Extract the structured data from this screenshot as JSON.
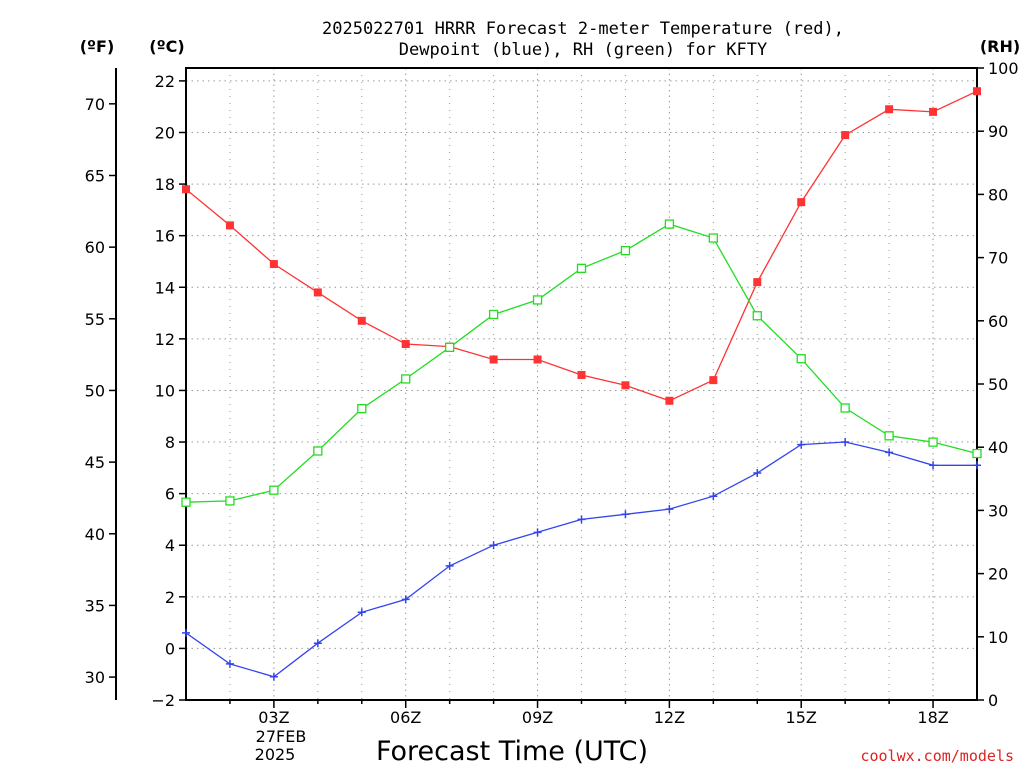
{
  "chart_data": {
    "type": "line",
    "title_line1": "2025022701 HRRR Forecast 2-meter Temperature (red),",
    "title_line2": "Dewpoint (blue), RH (green) for KFTY",
    "xlabel": "Forecast Time (UTC)",
    "credit": "coolwx.com/models",
    "unit_f": "(ºF)",
    "unit_c": "(ºC)",
    "unit_rh": "(RH)",
    "x_ticks": [
      "03Z",
      "06Z",
      "09Z",
      "12Z",
      "15Z",
      "18Z"
    ],
    "x_date_line1": "27FEB",
    "x_date_line2": "2025",
    "xlim_hours": [
      1,
      19
    ],
    "ylim_c": [
      -2,
      22.5
    ],
    "ylim_rh": [
      0,
      100
    ],
    "yticks_c": [
      "-2",
      "0",
      "2",
      "4",
      "6",
      "8",
      "10",
      "12",
      "14",
      "16",
      "18",
      "20",
      "22"
    ],
    "yticks_f": [
      "30",
      "35",
      "40",
      "45",
      "50",
      "55",
      "60",
      "65",
      "70"
    ],
    "yticks_rh": [
      "0",
      "10",
      "20",
      "30",
      "40",
      "50",
      "60",
      "70",
      "80",
      "90",
      "100"
    ],
    "grid": true,
    "colors": {
      "temperature": "#ff3333",
      "dewpoint": "#3344ee",
      "rh": "#22dd22",
      "axis": "#000000",
      "grid": "#999999",
      "credit": "#dd2222"
    },
    "hours": [
      1,
      2,
      3,
      4,
      5,
      6,
      7,
      8,
      9,
      10,
      11,
      12,
      13,
      14,
      15,
      16,
      17,
      18,
      19
    ],
    "series": [
      {
        "key": "temperature",
        "marker": "filled-square",
        "axis": "celsius",
        "values": [
          17.8,
          16.4,
          14.9,
          13.8,
          12.7,
          11.8,
          11.7,
          11.2,
          11.2,
          10.6,
          10.2,
          9.6,
          10.4,
          14.2,
          17.3,
          19.9,
          20.9,
          20.8,
          21.6
        ]
      },
      {
        "key": "dewpoint",
        "marker": "plus",
        "axis": "celsius",
        "values": [
          0.6,
          -0.6,
          -1.1,
          0.2,
          1.4,
          1.9,
          3.2,
          4.0,
          4.5,
          5.0,
          5.2,
          5.4,
          5.9,
          6.8,
          7.9,
          8.0,
          7.6,
          7.1,
          7.1
        ]
      },
      {
        "key": "rh",
        "marker": "hollow-square",
        "axis": "rh",
        "values": [
          31.3,
          31.5,
          33.2,
          39.4,
          46.1,
          50.8,
          55.8,
          61.0,
          63.3,
          68.3,
          71.1,
          75.3,
          73.1,
          60.8,
          54.0,
          46.2,
          41.8,
          40.8,
          39.0
        ]
      }
    ]
  }
}
